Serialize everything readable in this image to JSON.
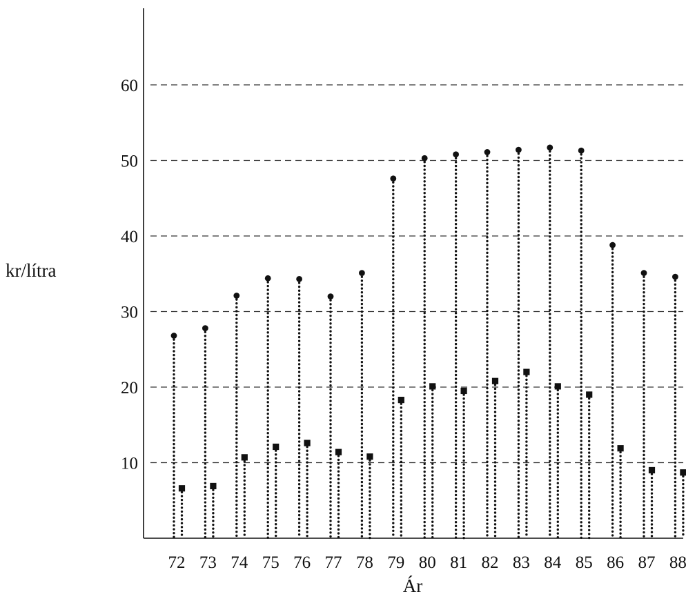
{
  "chart_data": {
    "type": "scatter",
    "xlabel": "Ár",
    "ylabel": "kr/lítra",
    "categories": [
      "72",
      "73",
      "74",
      "75",
      "76",
      "77",
      "78",
      "79",
      "80",
      "81",
      "82",
      "83",
      "84",
      "85",
      "86",
      "87",
      "88"
    ],
    "yticks": [
      10,
      20,
      30,
      40,
      50,
      60
    ],
    "ylim": [
      0,
      70
    ],
    "grid": true,
    "legend": "none",
    "series": [
      {
        "marker": "circle",
        "values": [
          26.8,
          27.8,
          32.1,
          34.4,
          34.3,
          32.0,
          35.1,
          47.6,
          50.3,
          50.8,
          51.1,
          51.4,
          51.7,
          51.3,
          38.8,
          35.1,
          34.6
        ]
      },
      {
        "marker": "square",
        "values": [
          6.6,
          6.9,
          10.7,
          12.1,
          12.6,
          11.4,
          10.8,
          18.3,
          20.1,
          19.5,
          20.8,
          22.0,
          20.1,
          19.0,
          11.9,
          9.0,
          8.7
        ]
      }
    ],
    "colors": {
      "marks": "#111111",
      "axis": "#111111",
      "grid": "#333333"
    }
  }
}
